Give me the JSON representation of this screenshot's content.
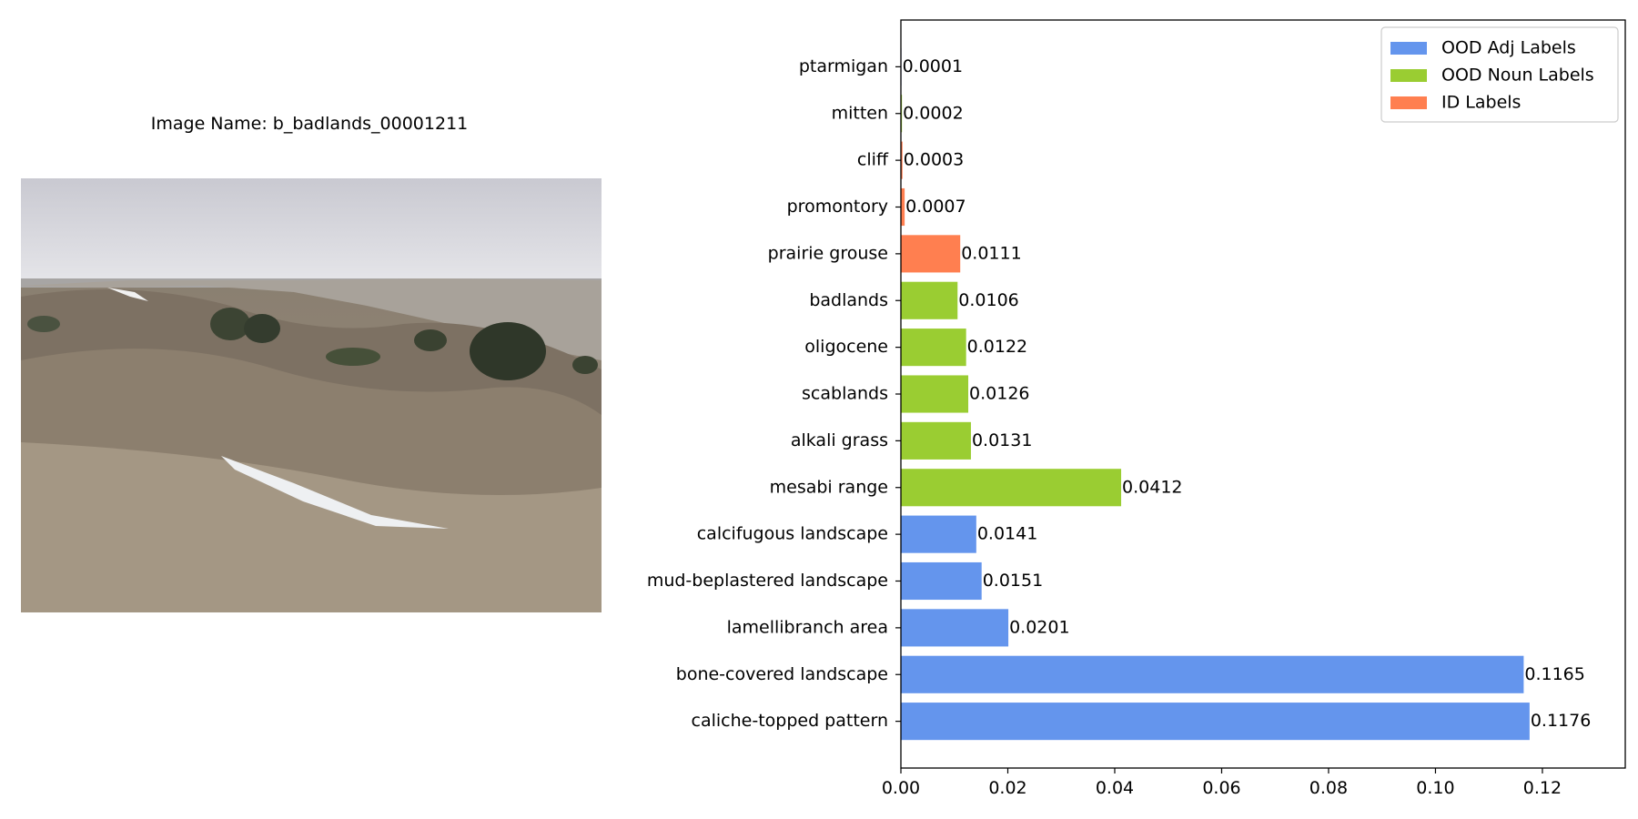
{
  "left_panel": {
    "image_title": "Image Name: b_badlands_00001211",
    "photo_subject": "badlands landscape with rolling grassy hills, dark juniper shrubs, patches of snow and an overcast sky"
  },
  "chart_data": {
    "type": "bar",
    "orientation": "horizontal",
    "categories": [
      "caliche-topped pattern",
      "bone-covered landscape",
      "lamellibranch area",
      "mud-beplastered landscape",
      "calcifugous landscape",
      "mesabi range",
      "alkali grass",
      "scablands",
      "oligocene",
      "badlands",
      "prairie grouse",
      "promontory",
      "cliff",
      "mitten",
      "ptarmigan"
    ],
    "values": [
      0.1176,
      0.1165,
      0.0201,
      0.0151,
      0.0141,
      0.0412,
      0.0131,
      0.0126,
      0.0122,
      0.0106,
      0.0111,
      0.0007,
      0.0003,
      0.0002,
      0.0001
    ],
    "value_labels": [
      "0.1176",
      "0.1165",
      "0.0201",
      "0.0151",
      "0.0141",
      "0.0412",
      "0.0131",
      "0.0126",
      "0.0122",
      "0.0106",
      "0.0111",
      "0.0007",
      "0.0003",
      "0.0002",
      "0.0001"
    ],
    "groups": [
      "adj",
      "adj",
      "adj",
      "adj",
      "adj",
      "noun",
      "noun",
      "noun",
      "noun",
      "noun",
      "id",
      "id",
      "id",
      "noun",
      "adj"
    ],
    "legend": [
      {
        "key": "adj",
        "label": "OOD Adj Labels",
        "color": "#6495ED"
      },
      {
        "key": "noun",
        "label": "OOD Noun Labels",
        "color": "#9ACD32"
      },
      {
        "key": "id",
        "label": "ID Labels",
        "color": "#FF7F50"
      }
    ],
    "legend_position": "top-right",
    "xlim": [
      0,
      0.1355
    ],
    "xticks": [
      0,
      0.02,
      0.04,
      0.06,
      0.08,
      0.1,
      0.12
    ],
    "xtick_labels": [
      "0.00",
      "0.02",
      "0.04",
      "0.06",
      "0.08",
      "0.10",
      "0.12"
    ],
    "grid": false
  }
}
